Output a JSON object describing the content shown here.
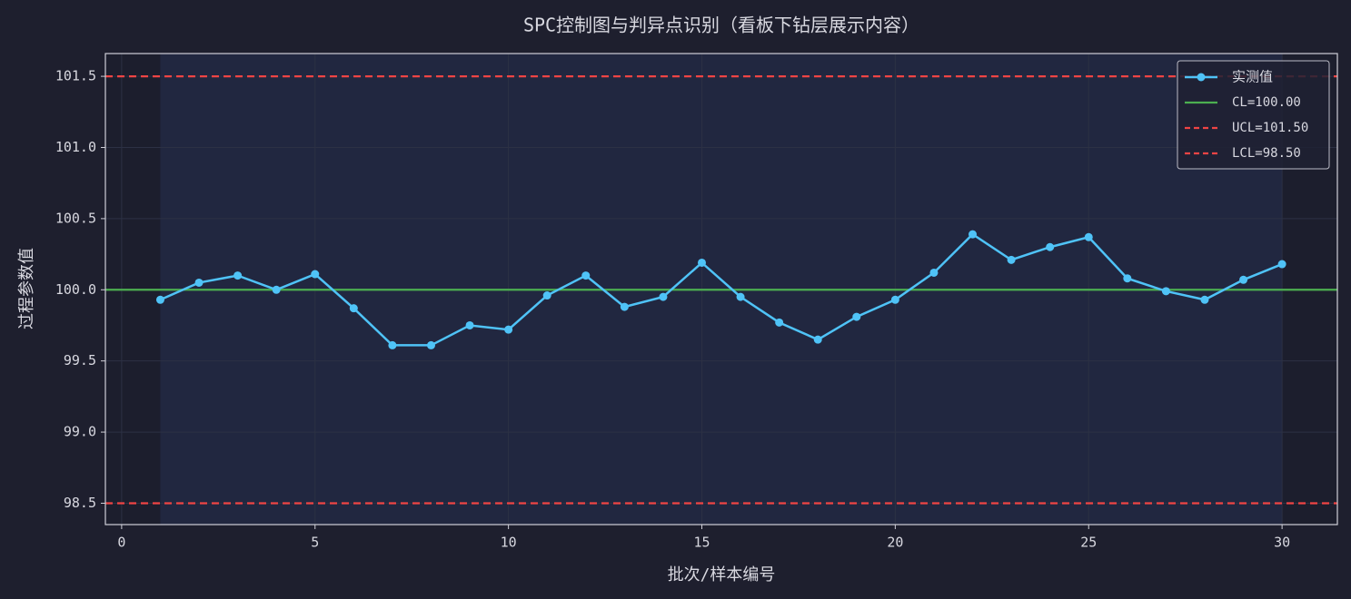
{
  "chart_data": {
    "type": "line",
    "title": "SPC控制图与判异点识别（看板下钻层展示内容）",
    "xlabel": "批次/样本编号",
    "ylabel": "过程参数值",
    "x": [
      1,
      2,
      3,
      4,
      5,
      6,
      7,
      8,
      9,
      10,
      11,
      12,
      13,
      14,
      15,
      16,
      17,
      18,
      19,
      20,
      21,
      22,
      23,
      24,
      25,
      26,
      27,
      28,
      29,
      30
    ],
    "series": [
      {
        "name": "实测值",
        "color": "#4fc3f7",
        "values": [
          99.93,
          100.05,
          100.1,
          100.0,
          100.11,
          99.87,
          99.61,
          99.61,
          99.75,
          99.72,
          99.96,
          100.1,
          99.88,
          99.95,
          100.19,
          99.95,
          99.77,
          99.65,
          99.81,
          99.93,
          100.12,
          100.39,
          100.21,
          100.3,
          100.37,
          100.08,
          99.99,
          99.93,
          100.07,
          100.18
        ]
      }
    ],
    "control_lines": [
      {
        "name": "CL=100.00",
        "value": 100,
        "color": "#4caf50",
        "dashed": false
      },
      {
        "name": "UCL=101.50",
        "value": 101.5,
        "color": "#ef4444",
        "dashed": true
      },
      {
        "name": "LCL=98.50",
        "value": 98.5,
        "color": "#ef4444",
        "dashed": true
      }
    ],
    "highlight_span": [
      1,
      30
    ],
    "xlim": [
      -0.42,
      31.43
    ],
    "ylim": [
      98.35,
      101.66
    ],
    "xticks": [
      0,
      5,
      10,
      15,
      20,
      25,
      30
    ],
    "yticks": [
      98.5,
      {
        "value": 99,
        "label": "99.0"
      },
      99.5,
      {
        "value": 100,
        "label": "100.0"
      },
      100.5,
      {
        "value": 101,
        "label": "101.0"
      },
      101.5
    ],
    "grid": true,
    "legend": "upper right"
  }
}
